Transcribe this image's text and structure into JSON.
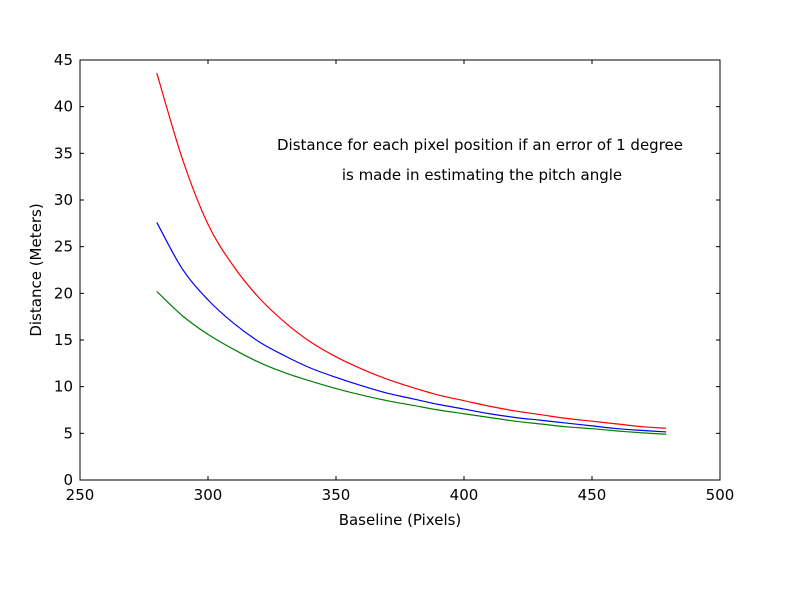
{
  "chart_data": {
    "type": "line",
    "title": "",
    "xlabel": "Baseline (Pixels)",
    "ylabel": "Distance (Meters)",
    "xlim": [
      250,
      500
    ],
    "ylim": [
      0,
      45
    ],
    "xticks": [
      250,
      300,
      350,
      400,
      450,
      500
    ],
    "yticks": [
      0,
      5,
      10,
      15,
      20,
      25,
      30,
      35,
      40,
      45
    ],
    "grid": false,
    "legend": "none",
    "annotation": [
      "Distance for each pixel position if an error of 1 degree",
      "is made in estimating the pitch angle"
    ],
    "x": [
      280,
      290,
      300,
      310,
      320,
      330,
      340,
      350,
      360,
      370,
      380,
      390,
      400,
      410,
      420,
      430,
      440,
      450,
      460,
      470,
      479
    ],
    "series": [
      {
        "color": "#ff0000",
        "values": [
          43.6,
          34.4,
          27.4,
          22.9,
          19.5,
          16.9,
          14.8,
          13.2,
          11.9,
          10.8,
          9.9,
          9.1,
          8.5,
          7.9,
          7.4,
          7.0,
          6.6,
          6.3,
          6.0,
          5.7,
          5.55
        ]
      },
      {
        "color": "#0000ff",
        "values": [
          27.6,
          22.6,
          19.3,
          16.8,
          14.8,
          13.3,
          12.0,
          11.0,
          10.1,
          9.3,
          8.7,
          8.1,
          7.6,
          7.1,
          6.7,
          6.4,
          6.1,
          5.8,
          5.5,
          5.3,
          5.15
        ]
      },
      {
        "color": "#008000",
        "values": [
          20.2,
          17.6,
          15.6,
          14.0,
          12.6,
          11.5,
          10.6,
          9.8,
          9.1,
          8.5,
          8.0,
          7.5,
          7.1,
          6.7,
          6.3,
          6.0,
          5.7,
          5.5,
          5.25,
          5.05,
          4.9
        ]
      }
    ]
  }
}
